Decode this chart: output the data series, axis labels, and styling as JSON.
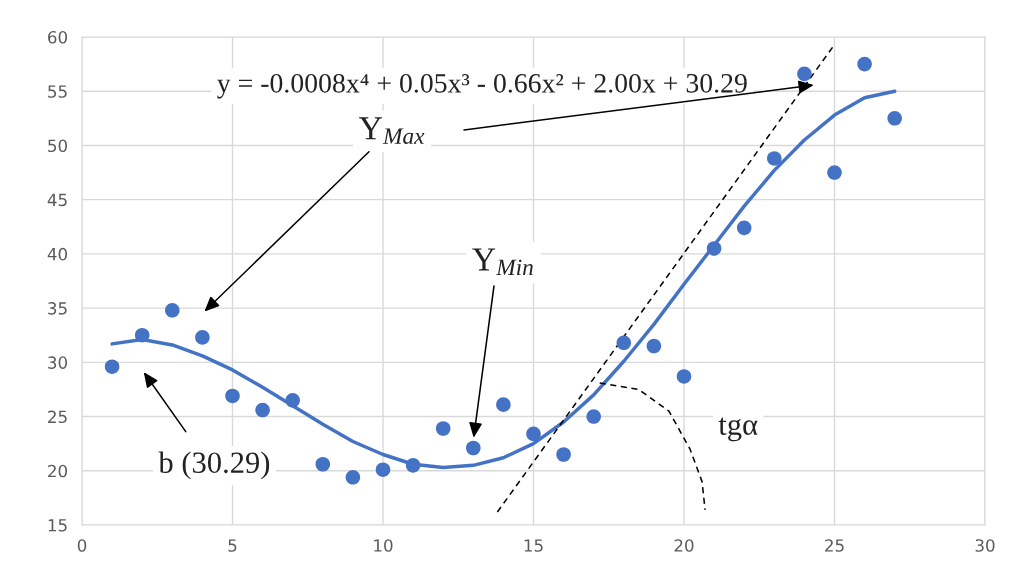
{
  "chart_data": {
    "type": "scatter",
    "series": [
      {
        "color": "#4472c4",
        "marker": "circle",
        "x": [
          1,
          2,
          3,
          4,
          5,
          6,
          7,
          8,
          9,
          10,
          11,
          12,
          13,
          14,
          15,
          16,
          17,
          18,
          19,
          20,
          21,
          22,
          23,
          24,
          25,
          26,
          27
        ],
        "values": [
          29.6,
          32.5,
          34.8,
          32.3,
          26.9,
          25.6,
          26.5,
          20.6,
          19.4,
          20.1,
          20.5,
          23.9,
          22.1,
          26.1,
          23.4,
          21.5,
          25.0,
          31.8,
          31.5,
          28.7,
          40.5,
          42.4,
          48.8,
          56.6,
          47.5,
          57.5,
          52.5
        ]
      },
      {
        "type": "line",
        "color": "#4472c4",
        "line_style": "solid",
        "x": [
          1,
          2,
          3,
          4,
          5,
          6,
          7,
          8,
          9,
          10,
          11,
          12,
          13,
          14,
          15,
          16,
          17,
          18,
          19,
          20,
          21,
          22,
          23,
          24,
          25,
          26,
          27
        ],
        "values": [
          31.7,
          32.1,
          31.6,
          30.6,
          29.3,
          27.7,
          26.0,
          24.3,
          22.7,
          21.5,
          20.6,
          20.3,
          20.5,
          21.2,
          22.5,
          24.5,
          27.0,
          30.1,
          33.5,
          37.2,
          40.8,
          44.4,
          47.7,
          50.5,
          52.8,
          54.4,
          55.0
        ]
      },
      {
        "type": "line",
        "color": "#000000",
        "line_style": "dashed",
        "x": [
          13.8,
          25.0
        ],
        "values": [
          16.2,
          59.3
        ]
      },
      {
        "type": "line",
        "color": "#000000",
        "line_style": "dashed",
        "x": [
          17.2,
          18.5,
          19.5,
          20.2,
          20.6,
          20.7
        ],
        "values": [
          28.1,
          27.5,
          25.5,
          22.0,
          19.0,
          16.4
        ]
      }
    ],
    "xlim": [
      0,
      30
    ],
    "xticks": [
      0,
      5,
      10,
      15,
      20,
      25,
      30
    ],
    "ylim": [
      15,
      60
    ],
    "yticks": [
      15,
      20,
      25,
      30,
      35,
      40,
      45,
      50,
      55,
      60
    ],
    "grid": true,
    "annotations": [
      "y = -0.0008x⁴ + 0.05x³ - 0.66x² + 2.00x + 30.29",
      "Y$_{Max}$",
      {
        "text": "Y$_{Min}$",
        "x": 13,
        "y": 22.8
      },
      "b (30.29)",
      "tgα"
    ]
  }
}
